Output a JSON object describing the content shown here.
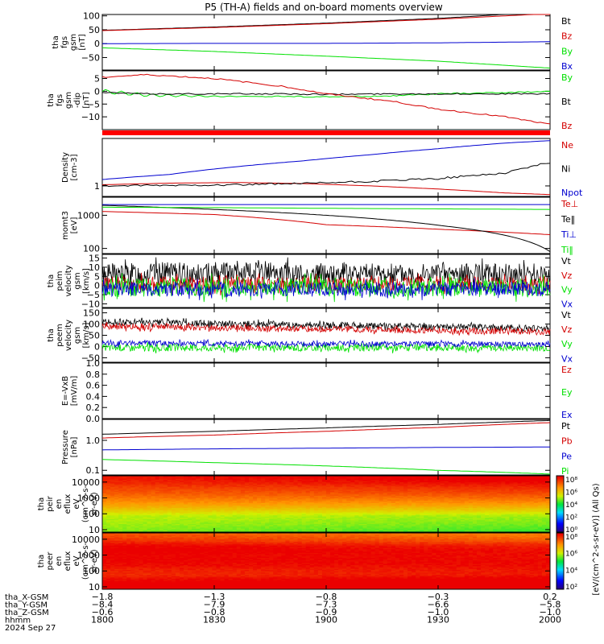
{
  "title": "P5 (TH-A) fields and on-board moments overview",
  "colors": {
    "black": "#000000",
    "red": "#d40000",
    "green": "#00e000",
    "blue": "#0000d0",
    "band": "#ff0000"
  },
  "chart_data": [
    {
      "type": "line",
      "id": "fgs-gsm",
      "ylabel": [
        "tha",
        "fgs",
        "gsm",
        "[nT]"
      ],
      "ylim": [
        -95,
        105
      ],
      "ytick_values": [
        100,
        50,
        0,
        -50
      ],
      "ytick_labels": [
        "100",
        "50",
        "0",
        "−50"
      ],
      "x": [
        -1.8,
        -1.3,
        -0.8,
        -0.3,
        0.2
      ],
      "series": [
        {
          "name": "Bt",
          "color": "black",
          "values": [
            48,
            60,
            74,
            91,
            115
          ]
        },
        {
          "name": "Bz",
          "color": "red",
          "values": [
            47,
            58,
            72,
            88,
            108
          ]
        },
        {
          "name": "By",
          "color": "green",
          "values": [
            -15,
            -28,
            -45,
            -63,
            -88
          ]
        },
        {
          "name": "Bx",
          "color": "blue",
          "values": [
            0,
            1,
            1,
            3,
            7
          ]
        }
      ]
    },
    {
      "type": "line",
      "id": "fgs-gsm-dipole",
      "ylabel": [
        "tha",
        "fgs",
        "gsm",
        "-dip",
        "[nT]"
      ],
      "ylim": [
        -15,
        8
      ],
      "ytick_values": [
        5,
        0,
        -5,
        -10
      ],
      "ytick_labels": [
        "5",
        "0",
        "−5",
        "−10"
      ],
      "x": [
        -1.8,
        -1.6,
        -1.3,
        -1.0,
        -0.8,
        -0.5,
        -0.3,
        0.0,
        0.2
      ],
      "series": [
        {
          "name": "By",
          "color": "green",
          "values": [
            0,
            -1.5,
            -2.0,
            -2.0,
            -2.2,
            -1.8,
            -1.0,
            -0.5,
            0
          ]
        },
        {
          "name": "Bt",
          "color": "black",
          "values": [
            -0.5,
            -1,
            -1,
            -1,
            -1.2,
            -1,
            -1,
            -1,
            -1
          ]
        },
        {
          "name": "Bz",
          "color": "red",
          "values": [
            5.5,
            6.5,
            5,
            2,
            -1,
            -4,
            -7,
            -10,
            -13
          ]
        }
      ],
      "band_color": "band"
    },
    {
      "type": "line",
      "id": "density",
      "ylabel": [
        "Density",
        "[cm-3]"
      ],
      "yscale": "log",
      "ylim": [
        0.65,
        7
      ],
      "ytick_values": [
        1
      ],
      "ytick_labels": [
        "1"
      ],
      "x": [
        -1.8,
        -1.5,
        -1.2,
        -0.9,
        -0.6,
        -0.3,
        0.0,
        0.2
      ],
      "series": [
        {
          "name": "Ne",
          "color": "red",
          "values": [
            1.05,
            1.12,
            1.15,
            1.1,
            1.0,
            0.88,
            0.75,
            0.7
          ]
        },
        {
          "name": "Ni",
          "color": "black",
          "values": [
            1.0,
            1.02,
            1.05,
            1.1,
            1.2,
            1.35,
            1.7,
            2.6
          ]
        },
        {
          "name": "Npot",
          "color": "blue",
          "values": [
            1.3,
            1.6,
            2.2,
            2.8,
            3.6,
            4.6,
            5.8,
            6.4
          ]
        }
      ]
    },
    {
      "type": "line",
      "id": "mom-temperature",
      "ylabel": [
        "momt3",
        "[eV]"
      ],
      "yscale": "log",
      "ylim": [
        70,
        3500
      ],
      "ytick_values": [
        1000,
        100
      ],
      "ytick_labels": [
        "1000",
        "100"
      ],
      "x": [
        -1.8,
        -1.3,
        -0.8,
        -0.3,
        0.2
      ],
      "series": [
        {
          "name": "Te⊥",
          "color": "red",
          "values": [
            1300,
            1050,
            520,
            380,
            260
          ]
        },
        {
          "name": "Te‖",
          "color": "black",
          "values": [
            2000,
            1500,
            1000,
            500,
            80
          ]
        },
        {
          "name": "Ti⊥",
          "color": "blue",
          "values": [
            2100,
            2100,
            2100,
            2100,
            2100
          ]
        },
        {
          "name": "Ti‖",
          "color": "green",
          "values": [
            1750,
            1700,
            1620,
            1560,
            1500
          ]
        }
      ]
    },
    {
      "type": "line",
      "id": "peim-velocity",
      "ylabel": [
        "tha",
        "peim",
        "velocity",
        "gsm",
        "[km/s]"
      ],
      "ylim": [
        -12,
        17
      ],
      "ytick_values": [
        15,
        10,
        5,
        0,
        -5,
        -10
      ],
      "ytick_labels": [
        "15",
        "10",
        "5",
        "0",
        "−5",
        "−10"
      ],
      "x": [
        -1.8,
        0.2
      ],
      "series": [
        {
          "name": "Vt",
          "color": "black",
          "values": [
            7,
            6
          ]
        },
        {
          "name": "Vz",
          "color": "red",
          "values": [
            1,
            1
          ]
        },
        {
          "name": "Vy",
          "color": "green",
          "values": [
            -1,
            -1
          ]
        },
        {
          "name": "Vx",
          "color": "blue",
          "values": [
            -2,
            -2
          ]
        }
      ],
      "noise": [
        6,
        4,
        5,
        4
      ]
    },
    {
      "type": "line",
      "id": "peem-velocity",
      "ylabel": [
        "tha",
        "peem",
        "velocity",
        "gsm",
        "[km/s]"
      ],
      "ylim": [
        -70,
        170
      ],
      "ytick_values": [
        150,
        100,
        50,
        0,
        -50
      ],
      "ytick_labels": [
        "150",
        "100",
        "50",
        "0",
        "−50"
      ],
      "x": [
        -1.8,
        0.2
      ],
      "series": [
        {
          "name": "Vt",
          "color": "black",
          "values": [
            110,
            80
          ]
        },
        {
          "name": "Vz",
          "color": "red",
          "values": [
            90,
            65
          ]
        },
        {
          "name": "Vy",
          "color": "green",
          "values": [
            -5,
            -5
          ]
        },
        {
          "name": "Vx",
          "color": "blue",
          "values": [
            15,
            10
          ]
        }
      ],
      "noise": [
        15,
        14,
        16,
        12
      ]
    },
    {
      "type": "line",
      "id": "e-field",
      "ylabel": [
        "E=-VxB",
        "[mV/m]"
      ],
      "ylim": [
        0,
        1
      ],
      "ytick_values": [
        1.0,
        0.8,
        0.6,
        0.4,
        0.2,
        0.0
      ],
      "ytick_labels": [
        "1.0",
        "0.8",
        "0.6",
        "0.4",
        "0.2",
        "0.0"
      ],
      "series": [
        {
          "name": "Ez",
          "color": "red",
          "values": []
        },
        {
          "name": "Ey",
          "color": "green",
          "values": []
        },
        {
          "name": "Ex",
          "color": "blue",
          "values": []
        }
      ]
    },
    {
      "type": "line",
      "id": "pressure",
      "ylabel": [
        "Pressure",
        "[nPa]"
      ],
      "yscale": "log",
      "ylim": [
        0.07,
        5
      ],
      "ytick_values": [
        1.0,
        0.1
      ],
      "ytick_labels": [
        "1.0",
        "0.1"
      ],
      "x": [
        -1.8,
        -1.3,
        -0.8,
        -0.3,
        0.2
      ],
      "series": [
        {
          "name": "Pt",
          "color": "black",
          "values": [
            1.6,
            2.0,
            2.6,
            3.4,
            4.6
          ]
        },
        {
          "name": "Pb",
          "color": "red",
          "values": [
            1.2,
            1.5,
            2.0,
            2.7,
            3.9
          ]
        },
        {
          "name": "Pe",
          "color": "blue",
          "values": [
            0.48,
            0.52,
            0.55,
            0.58,
            0.6
          ]
        },
        {
          "name": "Pi",
          "color": "green",
          "values": [
            0.23,
            0.18,
            0.14,
            0.1,
            0.075
          ]
        }
      ]
    },
    {
      "type": "heatmap",
      "id": "peir-spectrogram",
      "ylabel": [
        "tha",
        "peir",
        "en",
        "eflux",
        "eV",
        "(cm^2-s-",
        "sr-eV)"
      ],
      "yscale": "log",
      "ylim": [
        7,
        25000
      ],
      "ytick_values": [
        10000,
        1000,
        100,
        10
      ],
      "ytick_labels": [
        "10000",
        "1000",
        "100",
        "10"
      ],
      "x": [
        -1.8,
        0.2
      ],
      "energy_levels": [
        7,
        20,
        40,
        80,
        150,
        300,
        600,
        1200,
        2500,
        5000,
        10000,
        25000
      ],
      "log_flux": [
        4.7,
        4.9,
        5.0,
        5.1,
        5.6,
        6.1,
        6.5,
        6.8,
        7.1,
        7.3,
        7.6,
        7.8
      ],
      "time_trend": 0.5
    },
    {
      "type": "heatmap",
      "id": "peer-spectrogram",
      "ylabel": [
        "tha",
        "peer",
        "en",
        "eflux",
        "eV",
        "(cm^2-s-",
        "sr-eV)"
      ],
      "yscale": "log",
      "ylim": [
        7,
        25000
      ],
      "ytick_values": [
        10000,
        1000,
        100,
        10
      ],
      "ytick_labels": [
        "10000",
        "1000",
        "100",
        "10"
      ],
      "x": [
        -1.8,
        0.2
      ],
      "energy_levels": [
        7,
        12,
        30,
        60,
        120,
        250,
        500,
        1000,
        2000,
        4000,
        8000,
        25000
      ],
      "log_flux": [
        8.0,
        8.2,
        7.9,
        7.6,
        7.7,
        7.9,
        8.0,
        8.0,
        8.1,
        8.0,
        7.6,
        7.2
      ],
      "time_trend": -0.5
    }
  ],
  "colorbars": [
    {
      "tick_labels": [
        "10⁸",
        "10⁶",
        "10⁴",
        "10²",
        "10⁰"
      ],
      "log_range": [
        0,
        8
      ]
    },
    {
      "tick_labels": [
        "10⁸",
        "10⁶",
        "10⁴",
        "10²"
      ],
      "log_range": [
        1,
        8
      ]
    }
  ],
  "colorbar_label": "[eV/(cm^2-s-sr-eV)] (All Qs)",
  "x_axis": {
    "ticks": [
      -1.8,
      -1.3,
      -0.8,
      -0.3,
      0.2
    ],
    "rows": [
      {
        "label": "tha_X-GSM",
        "values": [
          "−1.8",
          "−1.3",
          "−0.8",
          "−0.3",
          "0.2"
        ]
      },
      {
        "label": "tha_Y-GSM",
        "values": [
          "−8.4",
          "−7.9",
          "−7.3",
          "−6.6",
          "−5.8"
        ]
      },
      {
        "label": "tha_Z-GSM",
        "values": [
          "−0.6",
          "−0.8",
          "−0.9",
          "−1.0",
          "−1.0"
        ]
      },
      {
        "label": "hhmm",
        "values": [
          "1800",
          "1830",
          "1900",
          "1930",
          "2000"
        ]
      }
    ],
    "date": "2024 Sep 27"
  }
}
